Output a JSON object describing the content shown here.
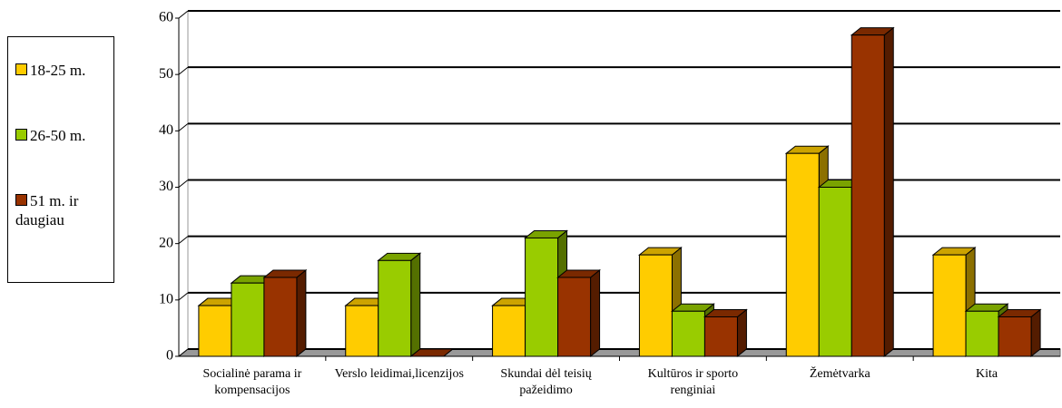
{
  "chart_data": {
    "type": "bar3d",
    "categories": [
      "Socialinė parama ir kompensacijos",
      "Verslo leidimai,licenzijos",
      "Skundai dėl teisių pažeidimo",
      "Kultūros ir sporto renginiai",
      "Žemėtvarka",
      "Kita"
    ],
    "series": [
      {
        "name": "18-25 m.",
        "color": "#ffcc00",
        "values": [
          9,
          9,
          9,
          18,
          36,
          18
        ]
      },
      {
        "name": "26-50 m.",
        "color": "#99cc00",
        "values": [
          13,
          17,
          21,
          8,
          30,
          8
        ]
      },
      {
        "name": "51 m. ir daugiau",
        "color": "#993300",
        "values": [
          14,
          0,
          14,
          7,
          57,
          7
        ]
      }
    ],
    "ylim": [
      0,
      60
    ],
    "yticks": [
      0,
      10,
      20,
      30,
      40,
      50,
      60
    ],
    "grid": true,
    "legend": "left"
  }
}
